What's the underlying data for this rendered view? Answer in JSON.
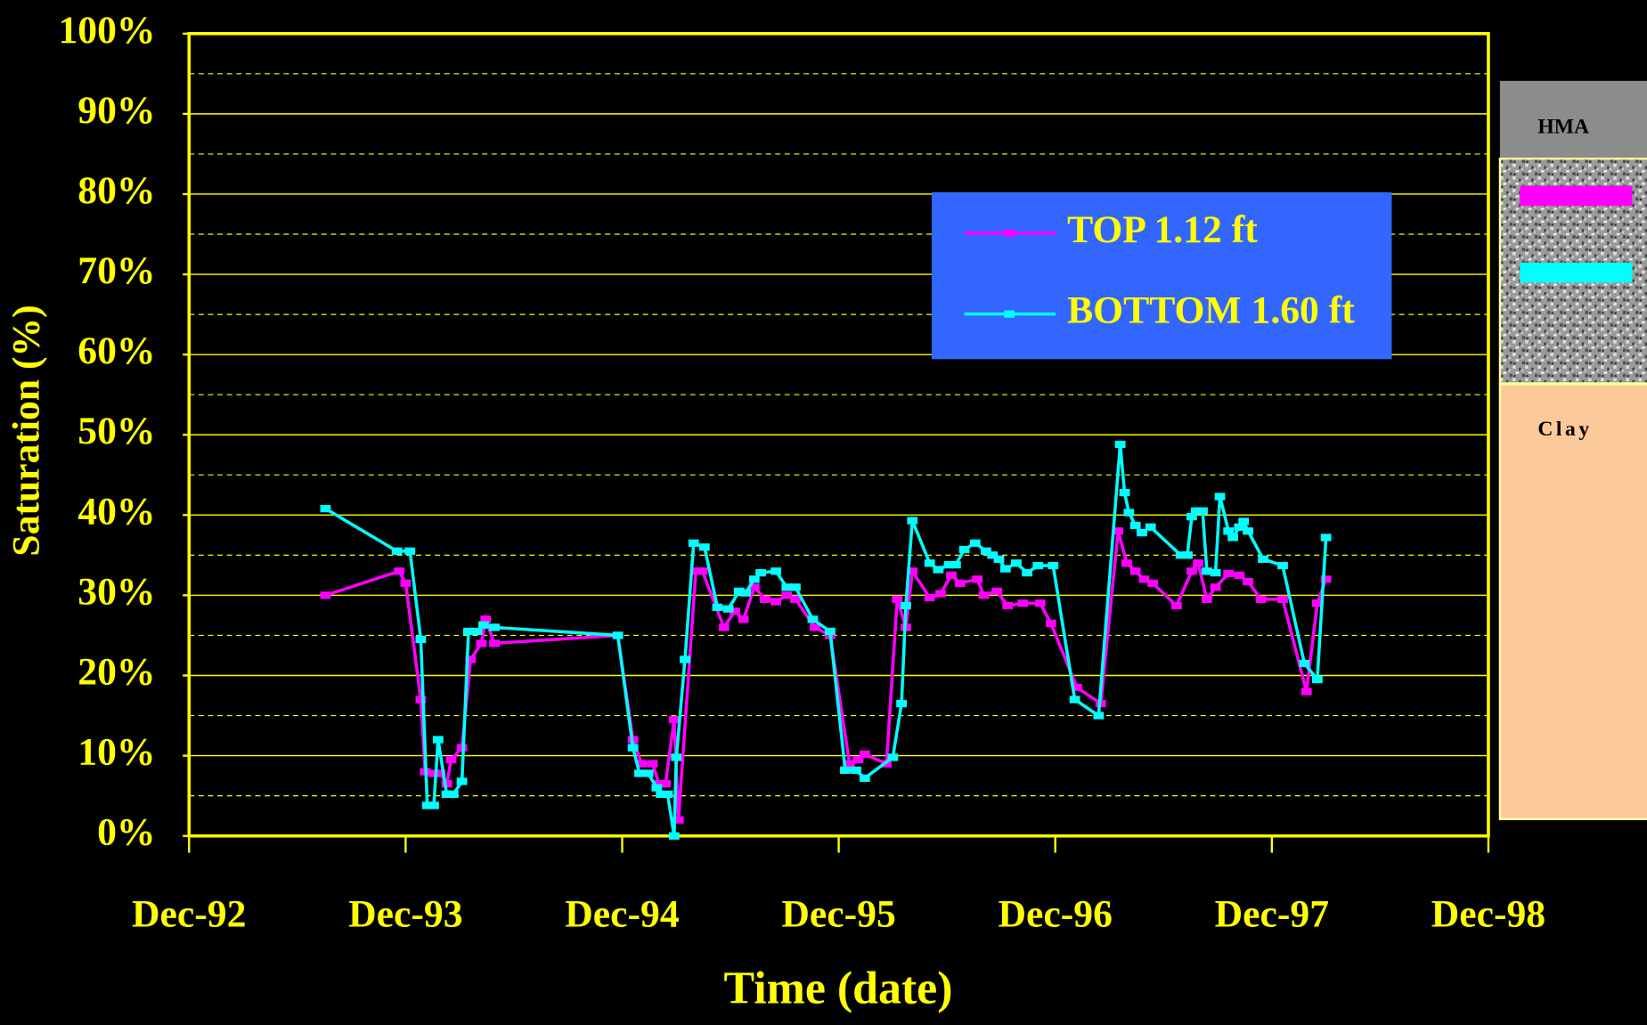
{
  "chart_data": {
    "type": "line",
    "x_label": "Time (date)",
    "y_label": "Saturation (%)",
    "xlim": [
      1992.92,
      1998.92
    ],
    "xticks": [
      {
        "value": 1992.92,
        "label": "Dec-92"
      },
      {
        "value": 1993.92,
        "label": "Dec-93"
      },
      {
        "value": 1994.92,
        "label": "Dec-94"
      },
      {
        "value": 1995.92,
        "label": "Dec-95"
      },
      {
        "value": 1996.92,
        "label": "Dec-96"
      },
      {
        "value": 1997.92,
        "label": "Dec-97"
      },
      {
        "value": 1998.92,
        "label": "Dec-98"
      }
    ],
    "ylim": [
      0,
      100
    ],
    "yticks": [
      {
        "value": 0,
        "label": "0%"
      },
      {
        "value": 10,
        "label": "10%"
      },
      {
        "value": 20,
        "label": "20%"
      },
      {
        "value": 30,
        "label": "30%"
      },
      {
        "value": 40,
        "label": "40%"
      },
      {
        "value": 50,
        "label": "50%"
      },
      {
        "value": 60,
        "label": "60%"
      },
      {
        "value": 70,
        "label": "70%"
      },
      {
        "value": 80,
        "label": "80%"
      },
      {
        "value": 90,
        "label": "90%"
      },
      {
        "value": 100,
        "label": "100%"
      }
    ],
    "minor_yticks": [
      5,
      15,
      25,
      35,
      45,
      55,
      65,
      75,
      85,
      95
    ],
    "grid": true,
    "legend_position": "upper-right",
    "series": [
      {
        "name": "TOP 1.12 ft",
        "color": "#ff00ff",
        "x": [
          1993.55,
          1993.89,
          1993.92,
          1993.99,
          1994.01,
          1994.05,
          1994.08,
          1994.11,
          1994.13,
          1994.18,
          1994.22,
          1994.27,
          1994.29,
          1994.33,
          1994.9,
          1994.97,
          1995.01,
          1995.06,
          1995.09,
          1995.12,
          1995.16,
          1995.18,
          1995.26,
          1995.29,
          1995.39,
          1995.44,
          1995.48,
          1995.53,
          1995.58,
          1995.63,
          1995.68,
          1995.72,
          1995.81,
          1995.88,
          1995.97,
          1996.01,
          1996.04,
          1996.14,
          1996.19,
          1996.23,
          1996.26,
          1996.34,
          1996.39,
          1996.44,
          1996.48,
          1996.56,
          1996.59,
          1996.65,
          1996.7,
          1996.77,
          1996.85,
          1996.9,
          1997.02,
          1997.13,
          1997.21,
          1997.25,
          1997.29,
          1997.33,
          1997.37,
          1997.48,
          1997.55,
          1997.58,
          1997.62,
          1997.66,
          1997.72,
          1997.77,
          1997.81,
          1997.87,
          1997.97,
          1998.08,
          1998.13,
          1998.17
        ],
        "values": [
          30,
          33,
          31.5,
          17,
          8,
          7.8,
          7.8,
          6.5,
          9.5,
          11,
          22,
          24,
          27,
          24,
          25,
          12,
          9,
          9,
          6.5,
          6.5,
          14.5,
          2,
          33,
          33,
          26,
          28,
          27,
          31,
          29.5,
          29.2,
          30,
          29.5,
          26,
          25,
          9,
          9.5,
          10.2,
          9,
          29.5,
          26,
          33,
          29.7,
          30.2,
          32.5,
          31.5,
          32,
          30,
          30.5,
          28.7,
          29,
          29,
          26.5,
          18.5,
          16.5,
          38,
          34,
          33,
          32,
          31.5,
          28.7,
          33,
          34,
          29.5,
          31,
          32.7,
          32.5,
          31.7,
          29.5,
          29.5,
          18,
          29,
          32
        ]
      },
      {
        "name": "BOTTOM 1.60 ft",
        "color": "#00ffff",
        "x": [
          1993.55,
          1993.88,
          1993.94,
          1993.99,
          1994.02,
          1994.05,
          1994.07,
          1994.11,
          1994.14,
          1994.18,
          1994.21,
          1994.25,
          1994.28,
          1994.33,
          1994.9,
          1994.97,
          1995.0,
          1995.04,
          1995.08,
          1995.1,
          1995.13,
          1995.16,
          1995.17,
          1995.21,
          1995.25,
          1995.3,
          1995.36,
          1995.41,
          1995.46,
          1995.49,
          1995.53,
          1995.56,
          1995.63,
          1995.68,
          1995.72,
          1995.8,
          1995.88,
          1995.95,
          1996.0,
          1996.04,
          1996.17,
          1996.21,
          1996.23,
          1996.26,
          1996.34,
          1996.38,
          1996.43,
          1996.46,
          1996.5,
          1996.55,
          1996.6,
          1996.63,
          1996.66,
          1996.69,
          1996.74,
          1996.79,
          1996.84,
          1996.91,
          1997.01,
          1997.12,
          1997.22,
          1997.24,
          1997.26,
          1997.29,
          1997.32,
          1997.36,
          1997.5,
          1997.53,
          1997.55,
          1997.57,
          1997.6,
          1997.62,
          1997.66,
          1997.68,
          1997.72,
          1997.74,
          1997.77,
          1997.79,
          1997.81,
          1997.88,
          1997.97,
          1998.07,
          1998.13,
          1998.17
        ],
        "values": [
          40.8,
          35.5,
          35.5,
          24.5,
          3.8,
          3.8,
          12,
          5.2,
          5.2,
          6.8,
          25.5,
          25.5,
          26.3,
          26,
          25,
          11,
          7.8,
          7.8,
          6,
          5.2,
          5.2,
          0,
          9.8,
          22,
          36.5,
          36,
          28.5,
          28.3,
          30.5,
          30.3,
          32,
          32.8,
          33,
          31,
          31,
          27,
          25.5,
          8.2,
          8.2,
          7.2,
          9.8,
          16.5,
          28.7,
          39.3,
          34,
          33.2,
          33.8,
          33.8,
          35.7,
          36.5,
          35.5,
          35,
          34.5,
          33.3,
          34,
          32.8,
          33.7,
          33.7,
          17,
          15,
          48.8,
          42.8,
          40.3,
          38.7,
          37.8,
          38.5,
          35,
          35,
          39.8,
          40.5,
          40.5,
          33,
          32.8,
          42.3,
          38,
          37.2,
          38.5,
          39.2,
          38,
          34.5,
          33.7,
          21.5,
          19.5,
          37.2
        ]
      }
    ]
  },
  "profile": {
    "layers": [
      "HMA",
      "Clay"
    ]
  }
}
